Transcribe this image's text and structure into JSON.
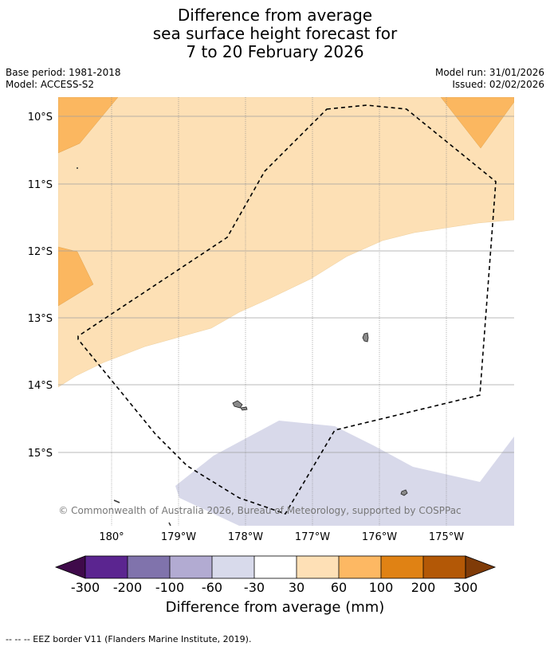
{
  "title": {
    "line1": "Difference from average",
    "line2": "sea surface height forecast for",
    "line3": "7 to 20 February 2026"
  },
  "meta": {
    "base_period": "Base period: 1981-2018",
    "model": "Model: ACCESS-S2",
    "model_run": "Model run: 31/01/2026",
    "issued": "Issued: 02/02/2026"
  },
  "map": {
    "lat_labels": [
      "10°S",
      "11°S",
      "12°S",
      "13°S",
      "14°S",
      "15°S"
    ],
    "lon_labels": [
      "180°",
      "179°W",
      "178°W",
      "177°W",
      "176°W",
      "175°W"
    ],
    "copyright": "© Commonwealth of Australia 2026, Bureau of Meteorology, supported by COSPPac",
    "colors": {
      "light_orange": "#fde0b5",
      "mid_orange": "#fbb760",
      "lavender": "#d8d9ea",
      "grid": "#a0a0a0",
      "land": "#8a8a8a"
    }
  },
  "colorbar": {
    "labels": [
      "-300",
      "-200",
      "-100",
      "-60",
      "-30",
      "30",
      "60",
      "100",
      "200",
      "300"
    ],
    "low_extend_color": "#3f0a4a",
    "high_extend_color": "#7f3b08",
    "colors": [
      "#5b2590",
      "#8073ac",
      "#b2abd2",
      "#d8daeb",
      "#ffffff",
      "#fee0b6",
      "#fdb863",
      "#e08214",
      "#b35806"
    ],
    "title": "Difference from average (mm)"
  },
  "footnote": "--  --  -- EEZ border V11 (Flanders Marine Institute, 2019)."
}
